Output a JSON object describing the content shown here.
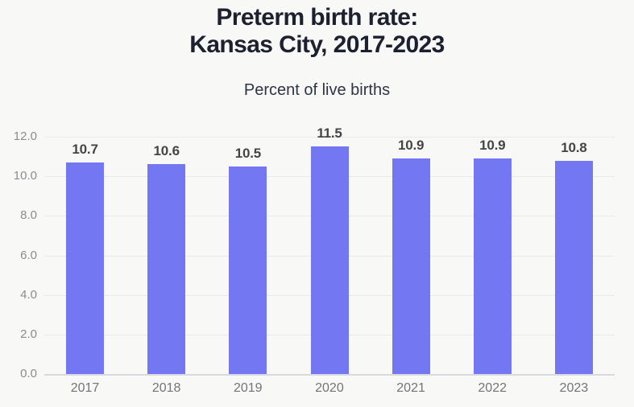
{
  "title": {
    "line1": "Preterm birth rate:",
    "line2": "Kansas City, 2017-2023"
  },
  "subtitle": "Percent of live births",
  "colors": {
    "background": "#f8f8f6",
    "bar": "#7477f2",
    "title_text": "#1c202f",
    "gridline": "#e9e9e6",
    "axis_label": "#8b8c90",
    "value_label": "#454548"
  },
  "chart_data": {
    "type": "bar",
    "title": "Preterm birth rate: Kansas City, 2017-2023",
    "subtitle": "Percent of live births",
    "categories": [
      "2017",
      "2018",
      "2019",
      "2020",
      "2021",
      "2022",
      "2023"
    ],
    "values": [
      10.7,
      10.6,
      10.5,
      11.5,
      10.9,
      10.9,
      10.8
    ],
    "value_labels": [
      "10.7",
      "10.6",
      "10.5",
      "11.5",
      "10.9",
      "10.9",
      "10.8"
    ],
    "xlabel": "",
    "ylabel": "",
    "ylim": [
      0,
      12
    ],
    "yticks": [
      0,
      2,
      4,
      6,
      8,
      10,
      12
    ],
    "ytick_labels": [
      "0.0",
      "2.0",
      "4.0",
      "6.0",
      "8.0",
      "10.0",
      "12.0"
    ],
    "grid": true,
    "legend": false
  }
}
